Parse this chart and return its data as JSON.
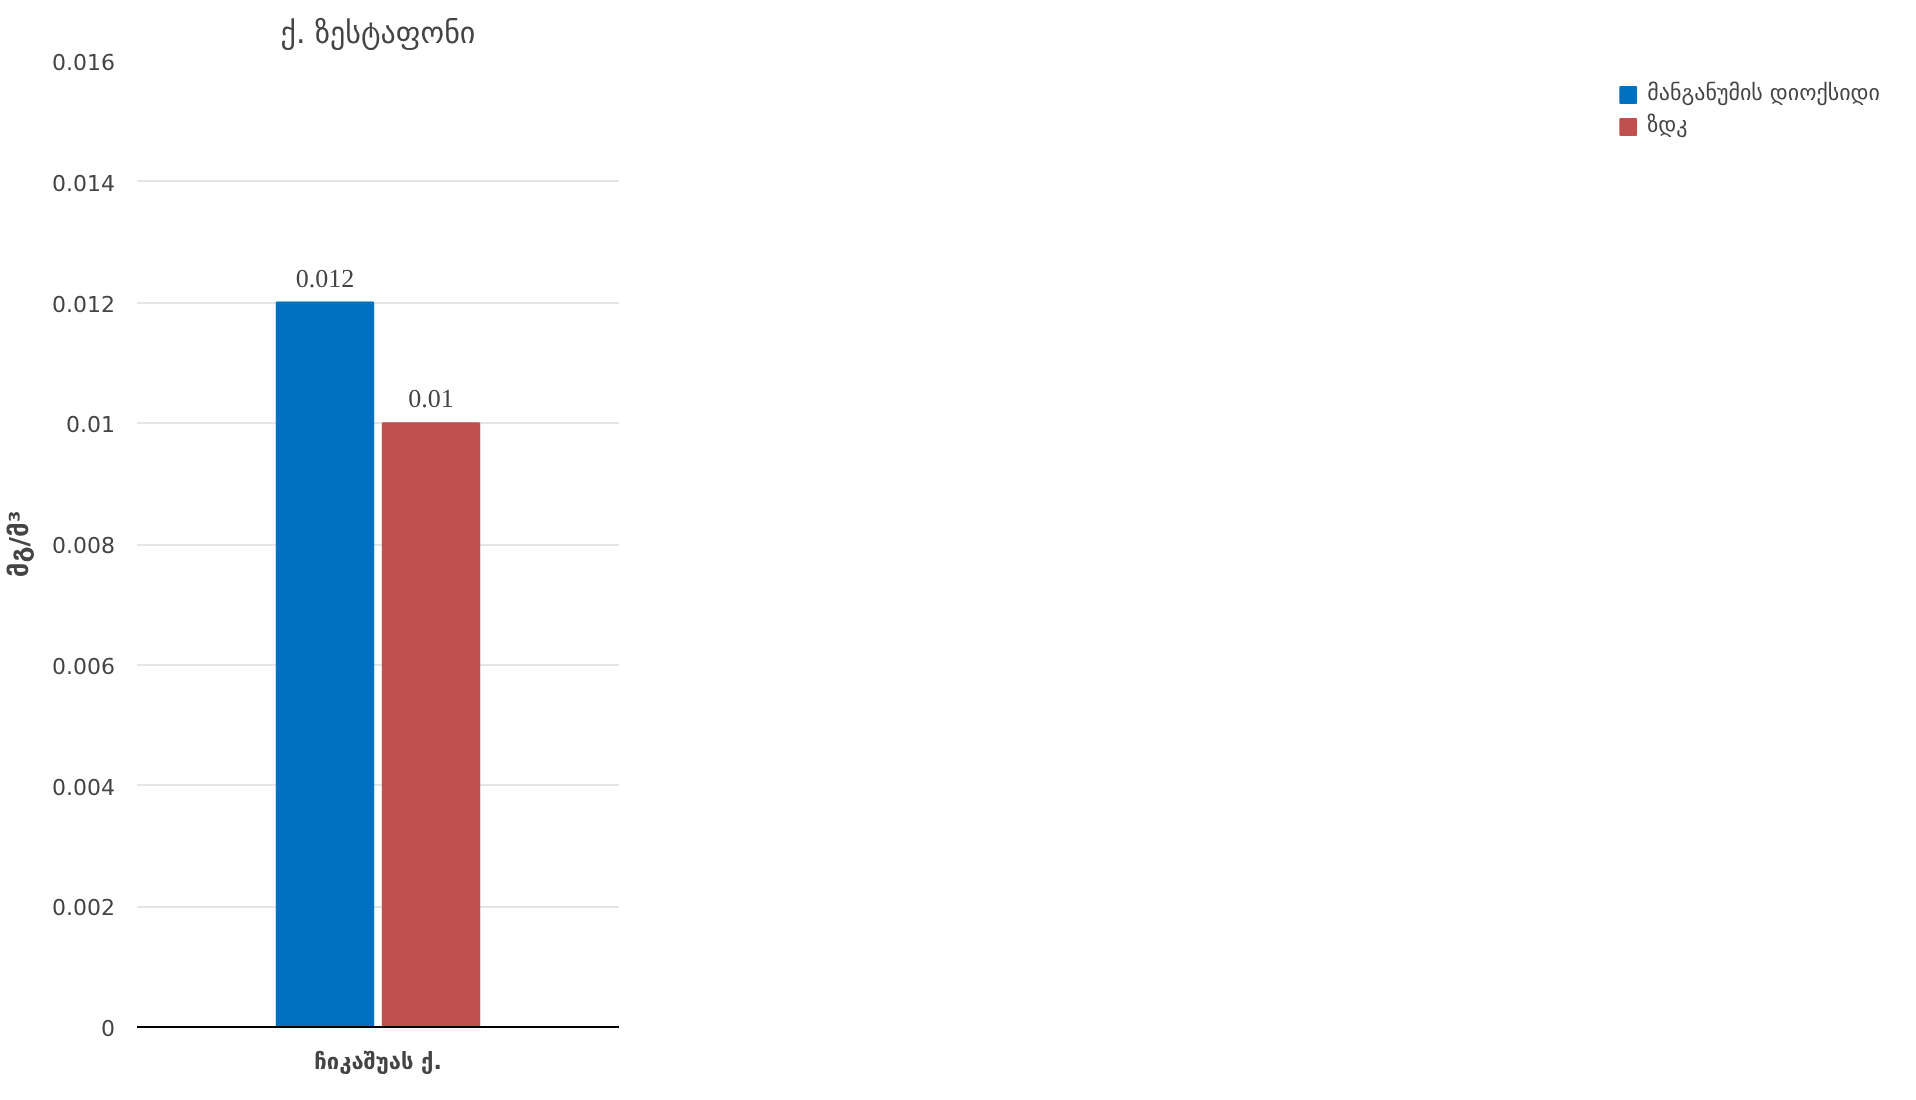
{
  "chart_data": {
    "type": "bar",
    "title": "ქ. ზესტაფონი",
    "ylabel": "მგ/მ³",
    "categories": [
      "ჩიკაშუას ქ."
    ],
    "series": [
      {
        "name": "მანგანუმის დიოქსიდი",
        "color": "#0070c0",
        "values": [
          0.012
        ]
      },
      {
        "name": "ზდკ",
        "color": "#c0504d",
        "values": [
          0.01
        ]
      }
    ],
    "ylim": [
      0,
      0.016
    ],
    "yticks": [
      0,
      0.002,
      0.004,
      0.006,
      0.008,
      0.01,
      0.012,
      0.014,
      0.016
    ],
    "grid": "y",
    "legend": "right",
    "data_labels": true
  }
}
